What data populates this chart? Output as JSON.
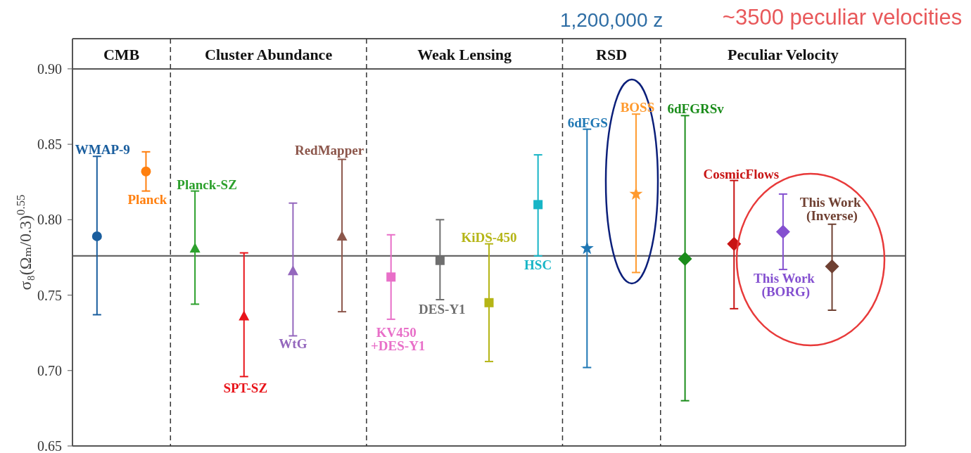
{
  "chart_data": {
    "type": "scatter",
    "ylabel": "σ₈(Ωₘ/0.3)$^{0.55}$",
    "categories": [
      null,
      null,
      null,
      null,
      null,
      null,
      null,
      null,
      null,
      null,
      null,
      null,
      null,
      null,
      null,
      null,
      null
    ],
    "ylim": [
      0.65,
      0.92
    ],
    "yticks": [
      {
        "value": 0.65,
        "label": "0.65"
      },
      {
        "value": 0.7,
        "label": "0.70"
      },
      {
        "value": 0.75,
        "label": "0.75"
      },
      {
        "value": 0.8,
        "label": "0.80"
      },
      {
        "value": 0.85,
        "label": "0.85"
      },
      {
        "value": 0.9,
        "label": "0.90"
      }
    ],
    "tick_labels": "y",
    "ref_lines": [
      {
        "axis": "y",
        "value": 0.776,
        "color": "#555555"
      },
      {
        "axis": "y",
        "value": 0.9,
        "color": "#555555"
      }
    ],
    "annotations": [
      "CMB",
      "Cluster Abundance",
      "Weak Lensing",
      "RSD",
      "Peculiar Velocity",
      "1,200,000 z",
      "~3500 peculiar velocities"
    ],
    "series": [
      {
        "name": "WMAP-9",
        "color": "#1a5e9e",
        "marker": "circle",
        "values": [
          0.789,
          null,
          null,
          null,
          null,
          null,
          null,
          null,
          null,
          null,
          null,
          null,
          null,
          null,
          null,
          null,
          null
        ],
        "errors": [
          [
            0.737,
            0.842
          ],
          null,
          null,
          null,
          null,
          null,
          null,
          null,
          null,
          null,
          null,
          null,
          null,
          null,
          null,
          null,
          null
        ]
      },
      {
        "name": "Planck",
        "color": "#ff7f0e",
        "marker": "circle",
        "values": [
          null,
          0.832,
          null,
          null,
          null,
          null,
          null,
          null,
          null,
          null,
          null,
          null,
          null,
          null,
          null,
          null,
          null
        ],
        "errors": [
          null,
          [
            0.819,
            0.845
          ],
          null,
          null,
          null,
          null,
          null,
          null,
          null,
          null,
          null,
          null,
          null,
          null,
          null,
          null,
          null
        ]
      },
      {
        "name": "Planck-SZ",
        "color": "#2ca02c",
        "marker": "triangle",
        "values": [
          null,
          null,
          0.781,
          null,
          null,
          null,
          null,
          null,
          null,
          null,
          null,
          null,
          null,
          null,
          null,
          null,
          null
        ],
        "errors": [
          null,
          null,
          [
            0.744,
            0.819
          ],
          null,
          null,
          null,
          null,
          null,
          null,
          null,
          null,
          null,
          null,
          null,
          null,
          null,
          null
        ]
      },
      {
        "name": "SPT-SZ",
        "color": "#e8141a",
        "marker": "triangle",
        "values": [
          null,
          null,
          null,
          0.736,
          null,
          null,
          null,
          null,
          null,
          null,
          null,
          null,
          null,
          null,
          null,
          null,
          null
        ],
        "errors": [
          null,
          null,
          null,
          [
            0.696,
            0.778
          ],
          null,
          null,
          null,
          null,
          null,
          null,
          null,
          null,
          null,
          null,
          null,
          null,
          null
        ]
      },
      {
        "name": "WtG",
        "color": "#9467bd",
        "marker": "triangle",
        "values": [
          null,
          null,
          null,
          null,
          0.766,
          null,
          null,
          null,
          null,
          null,
          null,
          null,
          null,
          null,
          null,
          null,
          null
        ],
        "errors": [
          null,
          null,
          null,
          null,
          [
            0.723,
            0.811
          ],
          null,
          null,
          null,
          null,
          null,
          null,
          null,
          null,
          null,
          null,
          null,
          null
        ]
      },
      {
        "name": "RedMapper",
        "color": "#8c564b",
        "marker": "triangle",
        "values": [
          null,
          null,
          null,
          null,
          null,
          0.789,
          null,
          null,
          null,
          null,
          null,
          null,
          null,
          null,
          null,
          null,
          null
        ],
        "errors": [
          null,
          null,
          null,
          null,
          null,
          [
            0.739,
            0.84
          ],
          null,
          null,
          null,
          null,
          null,
          null,
          null,
          null,
          null,
          null,
          null
        ]
      },
      {
        "name": "KV450 +DES-Y1",
        "color": "#e86fc8",
        "marker": "square",
        "values": [
          null,
          null,
          null,
          null,
          null,
          null,
          0.762,
          null,
          null,
          null,
          null,
          null,
          null,
          null,
          null,
          null,
          null
        ],
        "errors": [
          null,
          null,
          null,
          null,
          null,
          null,
          [
            0.734,
            0.79
          ],
          null,
          null,
          null,
          null,
          null,
          null,
          null,
          null,
          null,
          null
        ]
      },
      {
        "name": "DES-Y1",
        "color": "#6f6f6f",
        "marker": "square",
        "values": [
          null,
          null,
          null,
          null,
          null,
          null,
          null,
          0.773,
          null,
          null,
          null,
          null,
          null,
          null,
          null,
          null,
          null
        ],
        "errors": [
          null,
          null,
          null,
          null,
          null,
          null,
          null,
          [
            0.747,
            0.8
          ],
          null,
          null,
          null,
          null,
          null,
          null,
          null,
          null,
          null
        ]
      },
      {
        "name": "KiDS-450",
        "color": "#b5b516",
        "marker": "square",
        "values": [
          null,
          null,
          null,
          null,
          null,
          null,
          null,
          null,
          0.745,
          null,
          null,
          null,
          null,
          null,
          null,
          null,
          null
        ],
        "errors": [
          null,
          null,
          null,
          null,
          null,
          null,
          null,
          null,
          [
            0.706,
            0.784
          ],
          null,
          null,
          null,
          null,
          null,
          null,
          null,
          null
        ]
      },
      {
        "name": "HSC",
        "color": "#17b5c6",
        "marker": "square",
        "values": [
          null,
          null,
          null,
          null,
          null,
          null,
          null,
          null,
          null,
          0.81,
          null,
          null,
          null,
          null,
          null,
          null,
          null
        ],
        "errors": [
          null,
          null,
          null,
          null,
          null,
          null,
          null,
          null,
          null,
          [
            0.776,
            0.843
          ],
          null,
          null,
          null,
          null,
          null,
          null,
          null
        ]
      },
      {
        "name": "6dFGS",
        "color": "#1f77b4",
        "marker": "star",
        "values": [
          null,
          null,
          null,
          null,
          null,
          null,
          null,
          null,
          null,
          null,
          0.781,
          null,
          null,
          null,
          null,
          null,
          null
        ],
        "errors": [
          null,
          null,
          null,
          null,
          null,
          null,
          null,
          null,
          null,
          null,
          [
            0.702,
            0.86
          ],
          null,
          null,
          null,
          null,
          null,
          null
        ]
      },
      {
        "name": "BOSS",
        "color": "#ff9a2e",
        "marker": "star",
        "values": [
          null,
          null,
          null,
          null,
          null,
          null,
          null,
          null,
          null,
          null,
          null,
          0.817,
          null,
          null,
          null,
          null,
          null
        ],
        "errors": [
          null,
          null,
          null,
          null,
          null,
          null,
          null,
          null,
          null,
          null,
          null,
          [
            0.765,
            0.87
          ],
          null,
          null,
          null,
          null,
          null
        ]
      },
      {
        "name": "6dFGRSv",
        "color": "#1a8c1a",
        "marker": "diamond",
        "values": [
          null,
          null,
          null,
          null,
          null,
          null,
          null,
          null,
          null,
          null,
          null,
          null,
          0.774,
          null,
          null,
          null,
          null
        ],
        "errors": [
          null,
          null,
          null,
          null,
          null,
          null,
          null,
          null,
          null,
          null,
          null,
          null,
          [
            0.68,
            0.869
          ],
          null,
          null,
          null,
          null
        ]
      },
      {
        "name": "CosmicFlows",
        "color": "#c81414",
        "marker": "diamond",
        "values": [
          null,
          null,
          null,
          null,
          null,
          null,
          null,
          null,
          null,
          null,
          null,
          null,
          null,
          0.784,
          null,
          null,
          null
        ],
        "errors": [
          null,
          null,
          null,
          null,
          null,
          null,
          null,
          null,
          null,
          null,
          null,
          null,
          null,
          [
            0.741,
            0.826
          ],
          null,
          null,
          null
        ]
      },
      {
        "name": "This Work (BORG)",
        "color": "#8450d0",
        "marker": "diamond",
        "values": [
          null,
          null,
          null,
          null,
          null,
          null,
          null,
          null,
          null,
          null,
          null,
          null,
          null,
          null,
          0.792,
          null,
          null
        ],
        "errors": [
          null,
          null,
          null,
          null,
          null,
          null,
          null,
          null,
          null,
          null,
          null,
          null,
          null,
          null,
          [
            0.767,
            0.817
          ],
          null,
          null
        ]
      },
      {
        "name": "This Work (Inverse)",
        "color": "#6f4032",
        "marker": "diamond",
        "values": [
          null,
          null,
          null,
          null,
          null,
          null,
          null,
          null,
          null,
          null,
          null,
          null,
          null,
          null,
          null,
          0.769,
          null
        ],
        "errors": [
          null,
          null,
          null,
          null,
          null,
          null,
          null,
          null,
          null,
          null,
          null,
          null,
          null,
          null,
          null,
          [
            0.74,
            0.797
          ],
          null
        ]
      }
    ]
  }
}
